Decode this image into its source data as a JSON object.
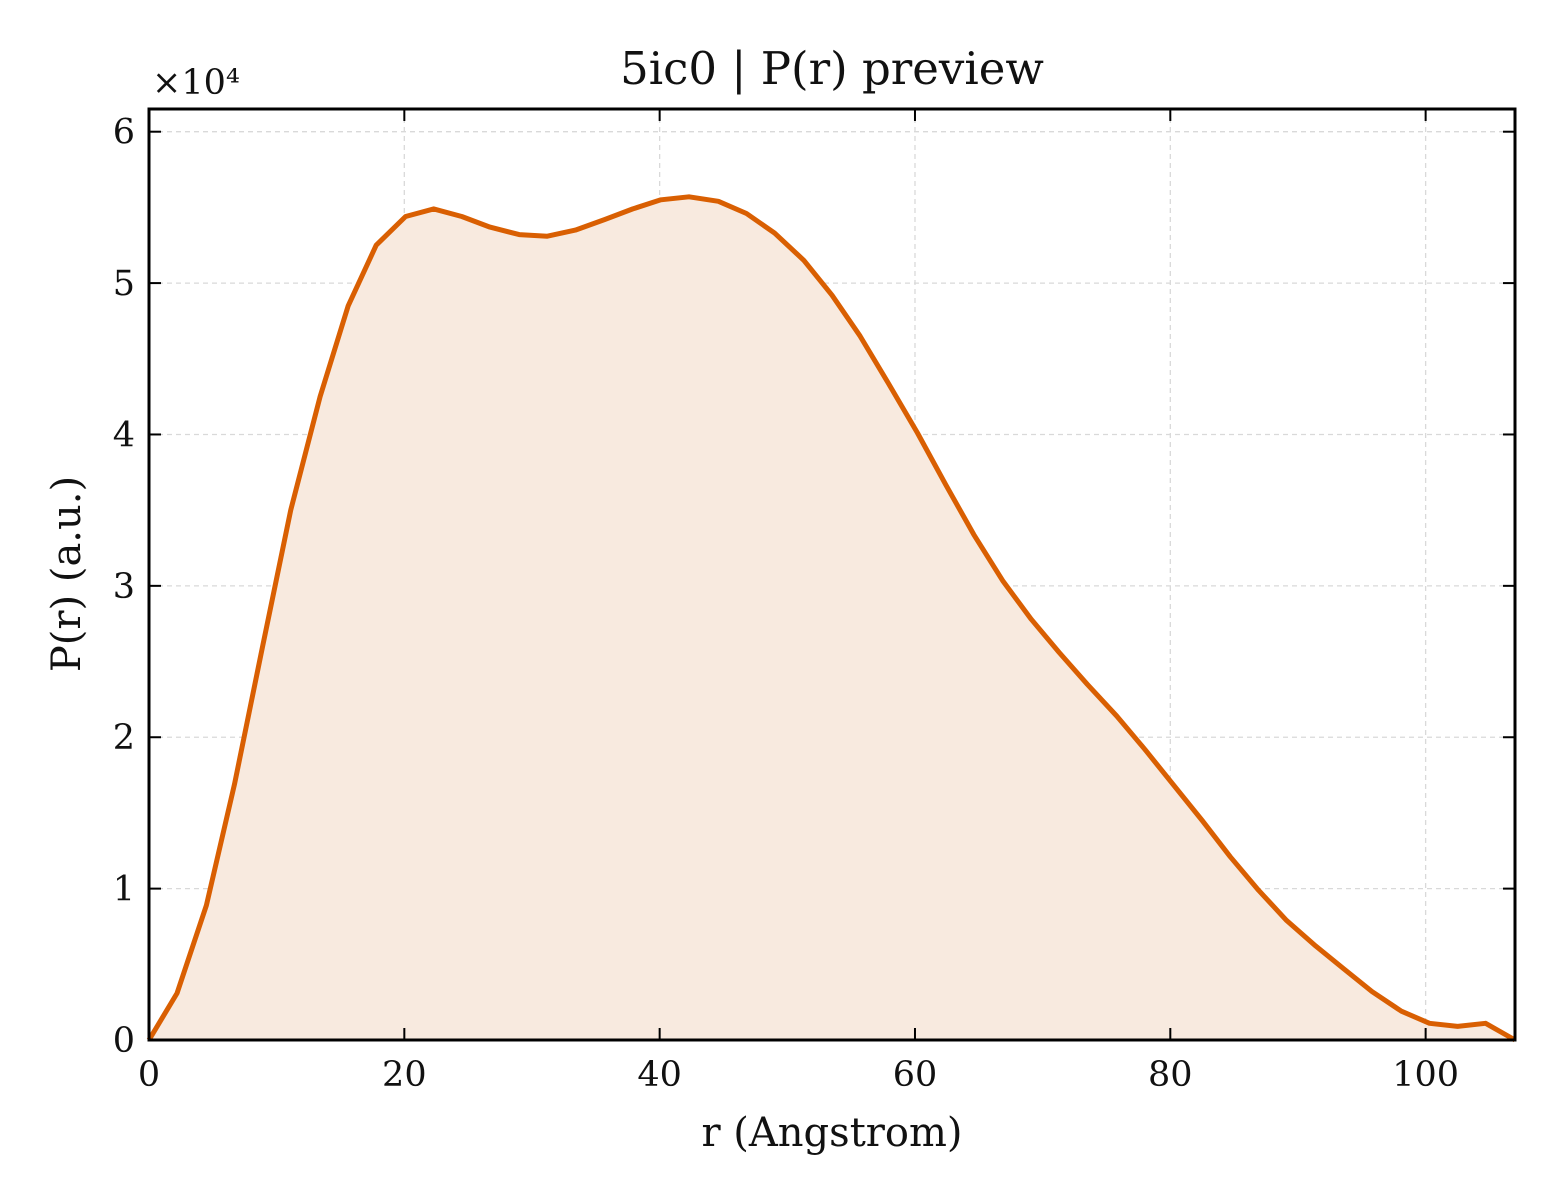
{
  "chart_data": {
    "type": "area",
    "title": "5ic0 | P(r) preview",
    "xlabel": "r (Angstrom)",
    "ylabel": "P(r) (a.u.)",
    "y_offset_text": "×10⁴",
    "xlim": [
      0,
      107
    ],
    "ylim": [
      0,
      61500
    ],
    "x_ticks": [
      0,
      20,
      40,
      60,
      80,
      100
    ],
    "x_tick_labels": [
      "0",
      "20",
      "40",
      "60",
      "80",
      "100"
    ],
    "y_ticks": [
      0,
      10000,
      20000,
      30000,
      40000,
      50000,
      60000
    ],
    "y_tick_labels": [
      "0",
      "1",
      "2",
      "3",
      "4",
      "5",
      "6"
    ],
    "grid": true,
    "legend": "none",
    "series": [
      {
        "color": "#d95f02",
        "fill_color": "#f8eadf",
        "x": [
          0,
          2.2,
          4.5,
          6.7,
          8.9,
          11.1,
          13.4,
          15.6,
          17.8,
          20.1,
          22.3,
          24.5,
          26.7,
          29.0,
          31.2,
          33.4,
          35.7,
          37.9,
          40.1,
          42.3,
          44.6,
          46.8,
          49.0,
          51.3,
          53.5,
          55.7,
          57.9,
          60.2,
          62.4,
          64.6,
          66.9,
          69.1,
          71.3,
          73.5,
          75.8,
          78.0,
          80.2,
          82.5,
          84.7,
          86.9,
          89.1,
          91.4,
          93.6,
          95.8,
          98.1,
          100.3,
          102.5,
          104.7,
          107.0
        ],
        "y": [
          0,
          3100,
          8900,
          16900,
          26000,
          35000,
          42500,
          48500,
          52500,
          54400,
          54900,
          54400,
          53700,
          53200,
          53100,
          53500,
          54200,
          54900,
          55500,
          55700,
          55400,
          54600,
          53300,
          51500,
          49200,
          46500,
          43400,
          40100,
          36700,
          33400,
          30300,
          27800,
          25600,
          23500,
          21400,
          19200,
          16900,
          14500,
          12100,
          9900,
          7900,
          6200,
          4700,
          3200,
          1900,
          1100,
          900,
          1100,
          0
        ]
      }
    ]
  }
}
